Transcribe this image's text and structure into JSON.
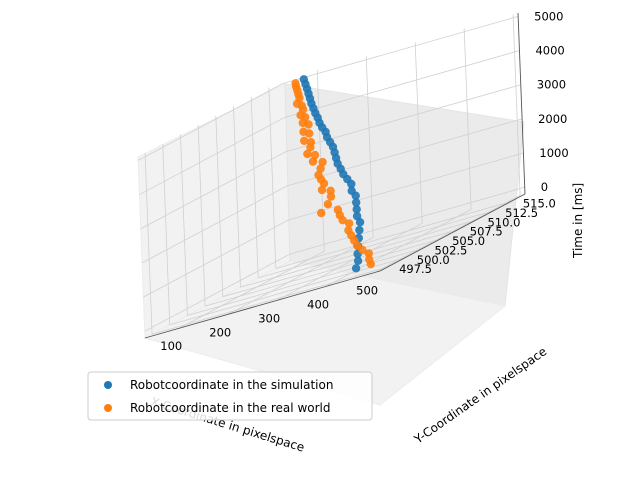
{
  "chart_data": {
    "type": "scatter",
    "projection": "3d",
    "xlabel": "X-Coordinate in pixelspace",
    "ylabel": "Y-Coordinate in pixelspace",
    "zlabel": "Time in [ms]",
    "xlim": [
      30,
      510
    ],
    "ylim": [
      496.5,
      517
    ],
    "zlim": [
      -200,
      5100
    ],
    "xticks": [
      "100",
      "200",
      "300",
      "400",
      "500"
    ],
    "yticks": [
      "497.5",
      "500.0",
      "502.5",
      "505.0",
      "507.5",
      "510.0",
      "512.5",
      "515.0"
    ],
    "zticks": [
      "0",
      "1000",
      "2000",
      "3000",
      "4000",
      "5000"
    ],
    "grid": true,
    "legend_position": "lower-left",
    "series": [
      {
        "name": "Robotcoordinate in the simulation",
        "color": "#1f77b4",
        "points": [
          [
            440,
            498,
            0
          ],
          [
            430,
            499,
            150
          ],
          [
            415,
            500,
            300
          ],
          [
            395,
            501.5,
            450
          ],
          [
            375,
            503,
            600
          ],
          [
            355,
            504.5,
            750
          ],
          [
            335,
            506,
            900
          ],
          [
            315,
            507,
            1050
          ],
          [
            300,
            508,
            1200
          ],
          [
            285,
            509,
            1350
          ],
          [
            270,
            510,
            1500
          ],
          [
            255,
            510.5,
            1650
          ],
          [
            240,
            511.5,
            1800
          ],
          [
            225,
            512,
            1950
          ],
          [
            210,
            512.5,
            2100
          ],
          [
            198,
            513,
            2250
          ],
          [
            185,
            513.5,
            2400
          ],
          [
            175,
            514,
            2550
          ],
          [
            165,
            514.5,
            2700
          ],
          [
            155,
            515,
            2850
          ],
          [
            145,
            515.3,
            3000
          ],
          [
            135,
            515.6,
            3150
          ],
          [
            128,
            515.9,
            3300
          ],
          [
            120,
            516,
            3450
          ],
          [
            112,
            516.2,
            3600
          ],
          [
            106,
            516.4,
            3750
          ],
          [
            100,
            516.5,
            3900
          ],
          [
            95,
            516.6,
            4050
          ],
          [
            90,
            516.7,
            4200
          ],
          [
            86,
            516.8,
            4350
          ],
          [
            82,
            516.9,
            4500
          ],
          [
            78,
            517,
            4650
          ],
          [
            75,
            517,
            4800
          ],
          [
            72,
            517,
            4950
          ]
        ]
      },
      {
        "name": "Robotcoordinate in the real world",
        "color": "#ff7f0e",
        "points": [
          [
            470,
            498,
            0
          ],
          [
            460,
            498.5,
            120
          ],
          [
            445,
            499.5,
            250
          ],
          [
            425,
            500,
            380
          ],
          [
            400,
            501,
            500
          ],
          [
            380,
            502,
            620
          ],
          [
            360,
            503,
            740
          ],
          [
            340,
            504,
            860
          ],
          [
            320,
            505.5,
            980
          ],
          [
            300,
            506,
            1100
          ],
          [
            280,
            507,
            1220
          ],
          [
            262,
            508,
            1340
          ],
          [
            250,
            506.5,
            1460
          ],
          [
            235,
            508.5,
            1560
          ],
          [
            220,
            510,
            1680
          ],
          [
            205,
            511,
            1800
          ],
          [
            195,
            510.5,
            1920
          ],
          [
            185,
            511.5,
            2040
          ],
          [
            172,
            512,
            2160
          ],
          [
            160,
            512.5,
            2280
          ],
          [
            150,
            513.5,
            2400
          ],
          [
            140,
            514.5,
            2520
          ],
          [
            128,
            514,
            2640
          ],
          [
            118,
            515,
            2760
          ],
          [
            110,
            514.5,
            2880
          ],
          [
            102,
            515.5,
            3000
          ],
          [
            96,
            516,
            3120
          ],
          [
            90,
            515.5,
            3240
          ],
          [
            86,
            516.5,
            3360
          ],
          [
            82,
            516,
            3480
          ],
          [
            78,
            517,
            3600
          ],
          [
            74,
            516.5,
            3720
          ],
          [
            72,
            517,
            3840
          ],
          [
            70,
            516.5,
            3960
          ],
          [
            68,
            517,
            4080
          ],
          [
            66,
            517,
            4200
          ],
          [
            64,
            516.5,
            4320
          ],
          [
            62,
            517,
            4440
          ],
          [
            60,
            517,
            4560
          ],
          [
            58,
            517,
            4680
          ],
          [
            56,
            517,
            4800
          ],
          [
            55,
            517,
            4900
          ]
        ]
      }
    ]
  }
}
